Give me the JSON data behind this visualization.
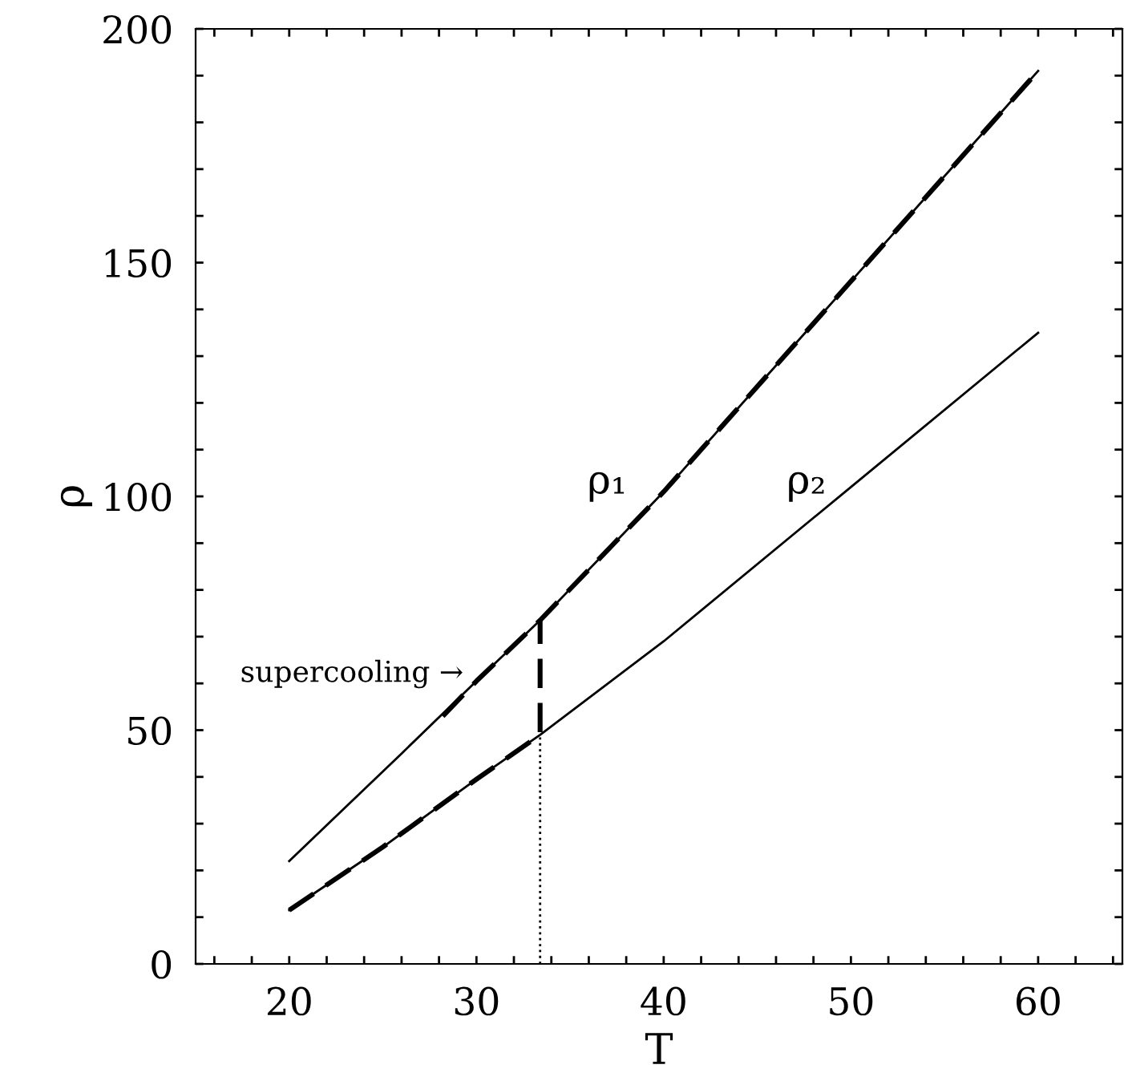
{
  "chart_data": {
    "type": "line",
    "xlabel": "T",
    "ylabel": "ρ",
    "xlim": [
      15,
      64.5
    ],
    "ylim": [
      0,
      200
    ],
    "xticks": [
      {
        "value": 16,
        "label": null
      },
      {
        "value": 18,
        "label": null
      },
      20,
      {
        "value": 22,
        "label": null
      },
      {
        "value": 24,
        "label": null
      },
      {
        "value": 26,
        "label": null
      },
      {
        "value": 28,
        "label": null
      },
      30,
      {
        "value": 32,
        "label": null
      },
      {
        "value": 34,
        "label": null
      },
      {
        "value": 36,
        "label": null
      },
      {
        "value": 38,
        "label": null
      },
      40,
      {
        "value": 42,
        "label": null
      },
      {
        "value": 44,
        "label": null
      },
      {
        "value": 46,
        "label": null
      },
      {
        "value": 48,
        "label": null
      },
      50,
      {
        "value": 52,
        "label": null
      },
      {
        "value": 54,
        "label": null
      },
      {
        "value": 56,
        "label": null
      },
      {
        "value": 58,
        "label": null
      },
      60,
      {
        "value": 62,
        "label": null
      },
      {
        "value": 64,
        "label": null
      }
    ],
    "yticks": [
      0,
      {
        "value": 10,
        "label": null
      },
      {
        "value": 20,
        "label": null
      },
      {
        "value": 30,
        "label": null
      },
      {
        "value": 40,
        "label": null
      },
      50,
      {
        "value": 60,
        "label": null
      },
      {
        "value": 70,
        "label": null
      },
      {
        "value": 80,
        "label": null
      },
      {
        "value": 90,
        "label": null
      },
      100,
      {
        "value": 110,
        "label": null
      },
      {
        "value": 120,
        "label": null
      },
      {
        "value": 130,
        "label": null
      },
      {
        "value": 140,
        "label": null
      },
      150,
      {
        "value": 160,
        "label": null
      },
      {
        "value": 170,
        "label": null
      },
      {
        "value": 180,
        "label": null
      },
      {
        "value": 190,
        "label": null
      },
      200
    ],
    "grid": false,
    "legend": false,
    "series": [
      {
        "color": "#000000",
        "line_style": "solid",
        "x": [
          20,
          26,
          30,
          33.4,
          40,
          50,
          60
        ],
        "values": [
          22,
          45,
          60.5,
          73.5,
          101,
          146,
          191
        ]
      },
      {
        "color": "#000000",
        "line_style": "solid",
        "x": [
          20,
          25,
          30,
          33.4,
          40,
          50,
          60
        ],
        "values": [
          11.5,
          25,
          39.5,
          49,
          69,
          102,
          135
        ]
      },
      {
        "color": "#000000",
        "line_style": "dashed",
        "x": [
          20,
          25,
          30,
          33.4,
          33.4
        ],
        "values": [
          11.5,
          25,
          39.5,
          49,
          73.5
        ]
      },
      {
        "color": "#000000",
        "line_style": "dashed",
        "x": [
          28.2,
          30,
          33.4,
          40,
          50,
          60
        ],
        "values": [
          53,
          60.5,
          73.5,
          101,
          146,
          191
        ]
      },
      {
        "color": "#000000",
        "line_style": "dotted",
        "x": [
          33.4,
          33.4
        ],
        "values": [
          0,
          49
        ]
      }
    ],
    "annotations": [
      "ρ₁",
      "ρ₂",
      "supercooling →"
    ]
  }
}
